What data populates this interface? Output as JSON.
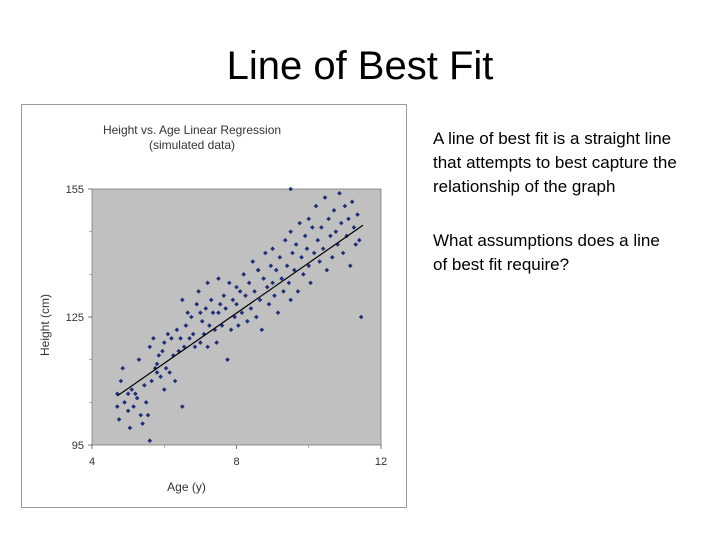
{
  "slide": {
    "title": "Line of Best Fit",
    "paragraphs": [
      {
        "lines": [
          "A line of best fit is a straight line",
          "that attempts to best capture the",
          " relationship of the graph"
        ]
      },
      {
        "lines": [
          "What assumptions does a line",
          " of best fit require?"
        ]
      }
    ]
  },
  "chart_data": {
    "type": "scatter",
    "title": "Height vs. Age Linear Regression",
    "subtitle": "(simulated data)",
    "xlabel": "Age (y)",
    "ylabel": "Height (cm)",
    "xlim": [
      4,
      12
    ],
    "ylim": [
      95,
      155
    ],
    "xticks": [
      "4",
      "8",
      "12"
    ],
    "yticks": [
      "95",
      "125",
      "155"
    ],
    "grid": false,
    "plot_background": "#c0c0c0",
    "point_color": "#1f2f7a",
    "line_color": "#000000",
    "fit_line": {
      "x": [
        4.7,
        11.5
      ],
      "y": [
        106.5,
        146.5
      ]
    },
    "points": [
      [
        4.7,
        104
      ],
      [
        4.7,
        107
      ],
      [
        4.75,
        101
      ],
      [
        4.8,
        110
      ],
      [
        4.85,
        113
      ],
      [
        4.9,
        105
      ],
      [
        5.0,
        107
      ],
      [
        5.0,
        103
      ],
      [
        5.05,
        99
      ],
      [
        5.1,
        108
      ],
      [
        5.15,
        104
      ],
      [
        5.2,
        107
      ],
      [
        5.25,
        106
      ],
      [
        5.3,
        115
      ],
      [
        5.35,
        102
      ],
      [
        5.4,
        100
      ],
      [
        5.45,
        109
      ],
      [
        5.5,
        105
      ],
      [
        5.55,
        102
      ],
      [
        5.6,
        118
      ],
      [
        5.6,
        96
      ],
      [
        5.65,
        110
      ],
      [
        5.7,
        120
      ],
      [
        5.75,
        113
      ],
      [
        5.8,
        114
      ],
      [
        5.85,
        116
      ],
      [
        5.9,
        111
      ],
      [
        5.95,
        117
      ],
      [
        6.0,
        119
      ],
      [
        6.0,
        108
      ],
      [
        6.05,
        113
      ],
      [
        6.1,
        121
      ],
      [
        6.15,
        112
      ],
      [
        6.2,
        120
      ],
      [
        6.25,
        116
      ],
      [
        6.3,
        110
      ],
      [
        6.35,
        122
      ],
      [
        6.4,
        117
      ],
      [
        6.45,
        120
      ],
      [
        6.5,
        104
      ],
      [
        6.55,
        118
      ],
      [
        6.6,
        123
      ],
      [
        6.65,
        126
      ],
      [
        6.7,
        120
      ],
      [
        6.75,
        125
      ],
      [
        6.8,
        121
      ],
      [
        6.85,
        118
      ],
      [
        6.9,
        128
      ],
      [
        6.95,
        131
      ],
      [
        7.0,
        119
      ],
      [
        7.0,
        126
      ],
      [
        7.05,
        124
      ],
      [
        7.1,
        121
      ],
      [
        7.15,
        127
      ],
      [
        7.2,
        118
      ],
      [
        7.25,
        123
      ],
      [
        7.3,
        129
      ],
      [
        7.35,
        126
      ],
      [
        7.4,
        122
      ],
      [
        7.45,
        119
      ],
      [
        7.5,
        134
      ],
      [
        7.5,
        126
      ],
      [
        7.55,
        128
      ],
      [
        7.6,
        123
      ],
      [
        7.65,
        130
      ],
      [
        7.7,
        127
      ],
      [
        7.75,
        115
      ],
      [
        7.8,
        133
      ],
      [
        7.85,
        122
      ],
      [
        7.9,
        129
      ],
      [
        7.95,
        125
      ],
      [
        8.0,
        132
      ],
      [
        8.0,
        128
      ],
      [
        8.05,
        123
      ],
      [
        8.1,
        131
      ],
      [
        8.15,
        126
      ],
      [
        8.2,
        135
      ],
      [
        8.25,
        130
      ],
      [
        8.3,
        124
      ],
      [
        8.35,
        133
      ],
      [
        8.4,
        127
      ],
      [
        8.45,
        138
      ],
      [
        8.5,
        131
      ],
      [
        8.55,
        125
      ],
      [
        8.6,
        136
      ],
      [
        8.65,
        129
      ],
      [
        8.7,
        122
      ],
      [
        8.75,
        134
      ],
      [
        8.8,
        140
      ],
      [
        8.85,
        132
      ],
      [
        8.9,
        128
      ],
      [
        8.95,
        137
      ],
      [
        9.0,
        133
      ],
      [
        9.0,
        141
      ],
      [
        9.05,
        130
      ],
      [
        9.1,
        136
      ],
      [
        9.15,
        126
      ],
      [
        9.2,
        139
      ],
      [
        9.25,
        134
      ],
      [
        9.3,
        131
      ],
      [
        9.35,
        143
      ],
      [
        9.4,
        137
      ],
      [
        9.45,
        133
      ],
      [
        9.5,
        145
      ],
      [
        9.5,
        129
      ],
      [
        9.55,
        140
      ],
      [
        9.6,
        136
      ],
      [
        9.65,
        142
      ],
      [
        9.7,
        131
      ],
      [
        9.75,
        147
      ],
      [
        9.8,
        139
      ],
      [
        9.85,
        135
      ],
      [
        9.9,
        144
      ],
      [
        9.95,
        141
      ],
      [
        10.0,
        137
      ],
      [
        10.0,
        148
      ],
      [
        10.05,
        133
      ],
      [
        10.1,
        146
      ],
      [
        10.15,
        140
      ],
      [
        10.2,
        151
      ],
      [
        10.25,
        143
      ],
      [
        10.3,
        138
      ],
      [
        10.35,
        146
      ],
      [
        10.4,
        141
      ],
      [
        10.45,
        153
      ],
      [
        10.5,
        136
      ],
      [
        10.55,
        148
      ],
      [
        10.6,
        144
      ],
      [
        10.65,
        139
      ],
      [
        10.7,
        150
      ],
      [
        10.75,
        145
      ],
      [
        10.8,
        142
      ],
      [
        10.85,
        154
      ],
      [
        10.9,
        147
      ],
      [
        10.95,
        140
      ],
      [
        11.0,
        151
      ],
      [
        11.05,
        144
      ],
      [
        11.1,
        148
      ],
      [
        11.15,
        137
      ],
      [
        11.2,
        152
      ],
      [
        11.25,
        146
      ],
      [
        11.3,
        142
      ],
      [
        11.35,
        149
      ],
      [
        11.4,
        143
      ],
      [
        11.45,
        125
      ],
      [
        9.5,
        155
      ],
      [
        6.5,
        129
      ],
      [
        7.2,
        133
      ],
      [
        8.6,
        136
      ],
      [
        5.8,
        112
      ]
    ]
  }
}
